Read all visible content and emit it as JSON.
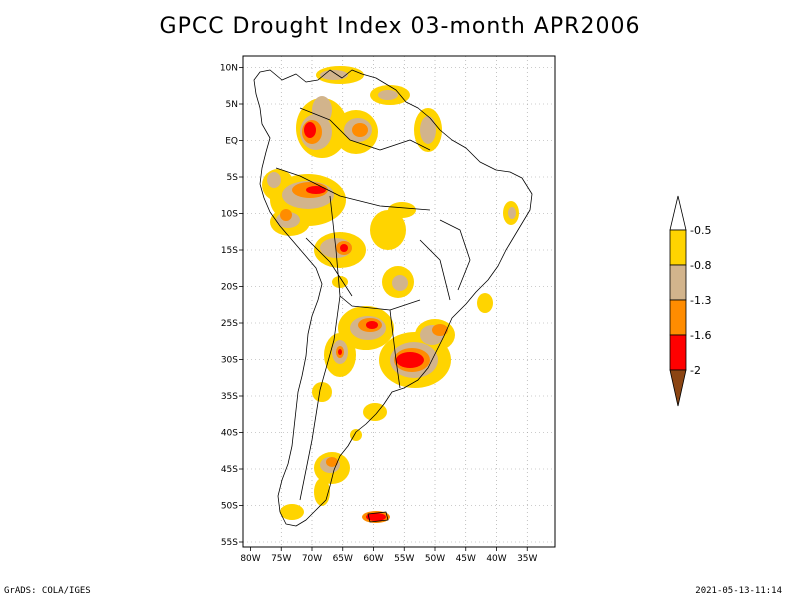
{
  "title": "GPCC Drought Index 03-month APR2006",
  "footer_left": "GrADS: COLA/IGES",
  "footer_right": "2021-05-13-11:14",
  "map": {
    "lon_range": [
      -80,
      -30
    ],
    "lat_range": [
      -55,
      12
    ],
    "lon_ticks": [
      "80W",
      "75W",
      "70W",
      "65W",
      "60W",
      "55W",
      "50W",
      "45W",
      "40W",
      "35W"
    ],
    "lat_ticks": [
      "10N",
      "5N",
      "EQ",
      "5S",
      "10S",
      "15S",
      "20S",
      "25S",
      "30S",
      "35S",
      "40S",
      "45S",
      "50S",
      "55S"
    ]
  },
  "colorbar": {
    "labels": [
      "-0.5",
      "-0.8",
      "-1.3",
      "-1.6",
      "-2"
    ],
    "colors": [
      "#ffffff",
      "#ffd400",
      "#d2b48c",
      "#ff8c00",
      "#ff0000",
      "#8b4513"
    ]
  }
}
